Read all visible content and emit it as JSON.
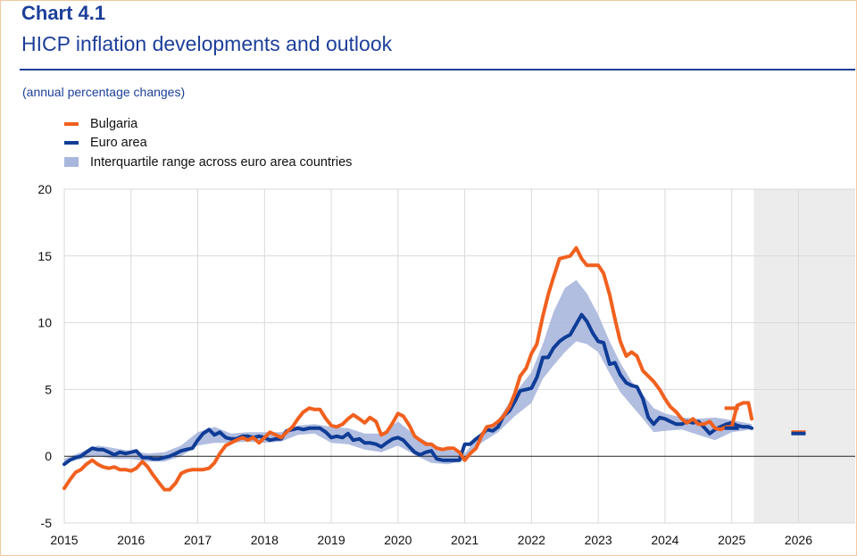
{
  "header": {
    "chart_number": "Chart 4.1",
    "title": "HICP inflation developments and outlook",
    "subtitle": "(annual percentage changes)"
  },
  "colors": {
    "bulgaria": "#f1601e",
    "euro_area": "#0f3c96",
    "interquartile_band": "#a9b7dd",
    "projection_shade": "#ececec",
    "title": "#1d3f9a"
  },
  "legend": [
    {
      "label": "Bulgaria",
      "kind": "line",
      "color": "#f1601e"
    },
    {
      "label": "Euro area",
      "kind": "line",
      "color": "#0f3c96"
    },
    {
      "label": "Interquartile range across euro area countries",
      "kind": "band",
      "color": "#a9b7dd"
    }
  ],
  "chart_data": {
    "type": "line",
    "x_axis": {
      "ticks": [
        "2015",
        "2016",
        "2017",
        "2018",
        "2019",
        "2020",
        "2021",
        "2022",
        "2023",
        "2024",
        "2025",
        "2026"
      ],
      "range": [
        2015.0,
        2026.85
      ]
    },
    "y_axis": {
      "ticks": [
        "20",
        "15",
        "10",
        "5",
        "0",
        "-5"
      ],
      "range": [
        -5,
        20
      ]
    },
    "grid": true,
    "legend_position": "top-left",
    "projection_shaded_from": 2025.33,
    "series": [
      {
        "name": "Bulgaria",
        "color": "#f1601e",
        "points": [
          [
            2015.0,
            -2.4
          ],
          [
            2015.08,
            -1.8
          ],
          [
            2015.17,
            -1.2
          ],
          [
            2015.25,
            -1.0
          ],
          [
            2015.33,
            -0.6
          ],
          [
            2015.42,
            -0.3
          ],
          [
            2015.5,
            -0.6
          ],
          [
            2015.58,
            -0.8
          ],
          [
            2015.67,
            -0.9
          ],
          [
            2015.75,
            -0.8
          ],
          [
            2015.83,
            -1.0
          ],
          [
            2015.92,
            -1.0
          ],
          [
            2016.0,
            -1.1
          ],
          [
            2016.08,
            -0.9
          ],
          [
            2016.17,
            -0.4
          ],
          [
            2016.25,
            -0.8
          ],
          [
            2016.33,
            -1.4
          ],
          [
            2016.42,
            -2.0
          ],
          [
            2016.5,
            -2.5
          ],
          [
            2016.58,
            -2.5
          ],
          [
            2016.67,
            -2.0
          ],
          [
            2016.75,
            -1.3
          ],
          [
            2016.83,
            -1.1
          ],
          [
            2016.92,
            -1.0
          ],
          [
            2017.0,
            -1.0
          ],
          [
            2017.08,
            -1.0
          ],
          [
            2017.17,
            -0.9
          ],
          [
            2017.25,
            -0.5
          ],
          [
            2017.33,
            0.2
          ],
          [
            2017.42,
            0.8
          ],
          [
            2017.5,
            1.0
          ],
          [
            2017.58,
            1.2
          ],
          [
            2017.67,
            1.4
          ],
          [
            2017.75,
            1.2
          ],
          [
            2017.83,
            1.4
          ],
          [
            2017.92,
            1.0
          ],
          [
            2018.0,
            1.4
          ],
          [
            2018.08,
            1.8
          ],
          [
            2018.17,
            1.6
          ],
          [
            2018.25,
            1.4
          ],
          [
            2018.33,
            1.8
          ],
          [
            2018.42,
            2.2
          ],
          [
            2018.5,
            2.8
          ],
          [
            2018.58,
            3.3
          ],
          [
            2018.67,
            3.6
          ],
          [
            2018.75,
            3.5
          ],
          [
            2018.83,
            3.5
          ],
          [
            2018.92,
            2.8
          ],
          [
            2019.0,
            2.3
          ],
          [
            2019.08,
            2.2
          ],
          [
            2019.17,
            2.4
          ],
          [
            2019.25,
            2.8
          ],
          [
            2019.33,
            3.1
          ],
          [
            2019.42,
            2.8
          ],
          [
            2019.5,
            2.5
          ],
          [
            2019.58,
            2.9
          ],
          [
            2019.67,
            2.6
          ],
          [
            2019.75,
            1.6
          ],
          [
            2019.83,
            1.8
          ],
          [
            2019.92,
            2.5
          ],
          [
            2020.0,
            3.2
          ],
          [
            2020.08,
            3.0
          ],
          [
            2020.17,
            2.3
          ],
          [
            2020.25,
            1.5
          ],
          [
            2020.33,
            1.2
          ],
          [
            2020.42,
            0.9
          ],
          [
            2020.5,
            0.9
          ],
          [
            2020.58,
            0.6
          ],
          [
            2020.67,
            0.5
          ],
          [
            2020.75,
            0.6
          ],
          [
            2020.83,
            0.6
          ],
          [
            2020.92,
            0.3
          ],
          [
            2021.0,
            -0.3
          ],
          [
            2021.08,
            0.2
          ],
          [
            2021.17,
            0.6
          ],
          [
            2021.25,
            1.5
          ],
          [
            2021.33,
            2.2
          ],
          [
            2021.42,
            2.3
          ],
          [
            2021.5,
            2.6
          ],
          [
            2021.58,
            3.0
          ],
          [
            2021.67,
            3.7
          ],
          [
            2021.75,
            4.7
          ],
          [
            2021.83,
            6.0
          ],
          [
            2021.92,
            6.6
          ],
          [
            2022.0,
            7.7
          ],
          [
            2022.08,
            8.4
          ],
          [
            2022.17,
            10.5
          ],
          [
            2022.25,
            12.1
          ],
          [
            2022.33,
            13.4
          ],
          [
            2022.42,
            14.8
          ],
          [
            2022.5,
            14.9
          ],
          [
            2022.58,
            15.0
          ],
          [
            2022.67,
            15.6
          ],
          [
            2022.75,
            14.8
          ],
          [
            2022.83,
            14.3
          ],
          [
            2022.92,
            14.3
          ],
          [
            2023.0,
            14.3
          ],
          [
            2023.08,
            13.7
          ],
          [
            2023.17,
            12.1
          ],
          [
            2023.25,
            10.3
          ],
          [
            2023.33,
            8.6
          ],
          [
            2023.42,
            7.5
          ],
          [
            2023.5,
            7.8
          ],
          [
            2023.58,
            7.5
          ],
          [
            2023.67,
            6.4
          ],
          [
            2023.75,
            6.0
          ],
          [
            2023.83,
            5.6
          ],
          [
            2023.92,
            5.0
          ],
          [
            2024.0,
            4.3
          ],
          [
            2024.08,
            3.7
          ],
          [
            2024.17,
            3.3
          ],
          [
            2024.25,
            2.8
          ],
          [
            2024.33,
            2.5
          ],
          [
            2024.42,
            2.8
          ],
          [
            2024.5,
            2.4
          ],
          [
            2024.58,
            2.4
          ],
          [
            2024.67,
            2.6
          ],
          [
            2024.75,
            2.1
          ],
          [
            2024.83,
            2.0
          ],
          [
            2024.92,
            2.2
          ],
          [
            2025.0,
            2.2
          ],
          [
            2025.08,
            3.8
          ],
          [
            2025.17,
            4.0
          ],
          [
            2025.25,
            4.0
          ],
          [
            2025.3,
            2.8
          ]
        ]
      },
      {
        "name": "Euro area",
        "color": "#0f3c96",
        "points": [
          [
            2015.0,
            -0.6
          ],
          [
            2015.08,
            -0.3
          ],
          [
            2015.17,
            -0.1
          ],
          [
            2015.25,
            0.0
          ],
          [
            2015.33,
            0.3
          ],
          [
            2015.42,
            0.6
          ],
          [
            2015.5,
            0.5
          ],
          [
            2015.58,
            0.5
          ],
          [
            2015.67,
            0.3
          ],
          [
            2015.75,
            0.1
          ],
          [
            2015.83,
            0.3
          ],
          [
            2015.92,
            0.2
          ],
          [
            2016.0,
            0.3
          ],
          [
            2016.08,
            0.4
          ],
          [
            2016.17,
            -0.1
          ],
          [
            2016.25,
            -0.1
          ],
          [
            2016.33,
            -0.2
          ],
          [
            2016.42,
            -0.2
          ],
          [
            2016.5,
            -0.1
          ],
          [
            2016.58,
            0.0
          ],
          [
            2016.67,
            0.2
          ],
          [
            2016.75,
            0.4
          ],
          [
            2016.83,
            0.5
          ],
          [
            2016.92,
            0.6
          ],
          [
            2017.0,
            1.2
          ],
          [
            2017.08,
            1.7
          ],
          [
            2017.17,
            2.0
          ],
          [
            2017.25,
            1.6
          ],
          [
            2017.33,
            1.8
          ],
          [
            2017.42,
            1.4
          ],
          [
            2017.5,
            1.3
          ],
          [
            2017.58,
            1.3
          ],
          [
            2017.67,
            1.5
          ],
          [
            2017.75,
            1.5
          ],
          [
            2017.83,
            1.4
          ],
          [
            2017.92,
            1.5
          ],
          [
            2018.0,
            1.4
          ],
          [
            2018.08,
            1.2
          ],
          [
            2018.17,
            1.3
          ],
          [
            2018.25,
            1.3
          ],
          [
            2018.33,
            1.9
          ],
          [
            2018.42,
            2.0
          ],
          [
            2018.5,
            2.1
          ],
          [
            2018.58,
            2.0
          ],
          [
            2018.67,
            2.1
          ],
          [
            2018.75,
            2.1
          ],
          [
            2018.83,
            2.1
          ],
          [
            2018.92,
            1.8
          ],
          [
            2019.0,
            1.4
          ],
          [
            2019.08,
            1.5
          ],
          [
            2019.17,
            1.4
          ],
          [
            2019.25,
            1.7
          ],
          [
            2019.33,
            1.2
          ],
          [
            2019.42,
            1.3
          ],
          [
            2019.5,
            1.0
          ],
          [
            2019.58,
            1.0
          ],
          [
            2019.67,
            0.9
          ],
          [
            2019.75,
            0.7
          ],
          [
            2019.83,
            1.0
          ],
          [
            2019.92,
            1.3
          ],
          [
            2020.0,
            1.4
          ],
          [
            2020.08,
            1.2
          ],
          [
            2020.17,
            0.7
          ],
          [
            2020.25,
            0.3
          ],
          [
            2020.33,
            0.1
          ],
          [
            2020.42,
            0.3
          ],
          [
            2020.5,
            0.4
          ],
          [
            2020.58,
            -0.2
          ],
          [
            2020.67,
            -0.3
          ],
          [
            2020.75,
            -0.3
          ],
          [
            2020.83,
            -0.3
          ],
          [
            2020.92,
            -0.3
          ],
          [
            2021.0,
            0.9
          ],
          [
            2021.08,
            0.9
          ],
          [
            2021.17,
            1.3
          ],
          [
            2021.25,
            1.6
          ],
          [
            2021.33,
            2.0
          ],
          [
            2021.42,
            1.9
          ],
          [
            2021.5,
            2.2
          ],
          [
            2021.58,
            3.0
          ],
          [
            2021.67,
            3.4
          ],
          [
            2021.75,
            4.1
          ],
          [
            2021.83,
            4.9
          ],
          [
            2021.92,
            5.0
          ],
          [
            2022.0,
            5.1
          ],
          [
            2022.08,
            5.9
          ],
          [
            2022.17,
            7.4
          ],
          [
            2022.25,
            7.4
          ],
          [
            2022.33,
            8.1
          ],
          [
            2022.42,
            8.6
          ],
          [
            2022.5,
            8.9
          ],
          [
            2022.58,
            9.1
          ],
          [
            2022.67,
            9.9
          ],
          [
            2022.75,
            10.6
          ],
          [
            2022.83,
            10.1
          ],
          [
            2022.92,
            9.2
          ],
          [
            2023.0,
            8.6
          ],
          [
            2023.08,
            8.5
          ],
          [
            2023.17,
            6.9
          ],
          [
            2023.25,
            7.0
          ],
          [
            2023.33,
            6.1
          ],
          [
            2023.42,
            5.5
          ],
          [
            2023.5,
            5.3
          ],
          [
            2023.58,
            5.2
          ],
          [
            2023.67,
            4.3
          ],
          [
            2023.75,
            2.9
          ],
          [
            2023.83,
            2.4
          ],
          [
            2023.92,
            2.9
          ],
          [
            2024.0,
            2.8
          ],
          [
            2024.08,
            2.6
          ],
          [
            2024.17,
            2.4
          ],
          [
            2024.25,
            2.4
          ],
          [
            2024.33,
            2.6
          ],
          [
            2024.42,
            2.5
          ],
          [
            2024.5,
            2.6
          ],
          [
            2024.58,
            2.2
          ],
          [
            2024.67,
            1.7
          ],
          [
            2024.75,
            2.0
          ],
          [
            2024.83,
            2.2
          ],
          [
            2024.92,
            2.4
          ],
          [
            2025.0,
            2.5
          ],
          [
            2025.08,
            2.3
          ],
          [
            2025.17,
            2.2
          ],
          [
            2025.25,
            2.2
          ],
          [
            2025.3,
            2.1
          ]
        ]
      }
    ],
    "interquartile_band": {
      "name": "Interquartile range across euro area countries",
      "x": [
        2015.0,
        2015.25,
        2015.5,
        2015.75,
        2016.0,
        2016.25,
        2016.5,
        2016.75,
        2017.0,
        2017.25,
        2017.5,
        2017.75,
        2018.0,
        2018.25,
        2018.5,
        2018.75,
        2019.0,
        2019.25,
        2019.5,
        2019.75,
        2020.0,
        2020.25,
        2020.5,
        2020.75,
        2021.0,
        2021.25,
        2021.5,
        2021.75,
        2022.0,
        2022.17,
        2022.33,
        2022.5,
        2022.67,
        2022.83,
        2023.0,
        2023.17,
        2023.33,
        2023.5,
        2023.67,
        2023.83,
        2024.0,
        2024.25,
        2024.5,
        2024.75,
        2025.0,
        2025.3
      ],
      "lower": [
        -0.5,
        -0.2,
        0.0,
        -0.2,
        -0.2,
        -0.4,
        -0.4,
        0.0,
        0.8,
        1.0,
        1.0,
        1.1,
        1.0,
        1.1,
        1.6,
        1.7,
        1.0,
        0.9,
        0.5,
        0.3,
        0.8,
        0.1,
        -0.5,
        -0.6,
        -0.3,
        1.0,
        1.8,
        3.0,
        4.0,
        5.8,
        6.8,
        7.8,
        8.6,
        8.4,
        7.8,
        6.2,
        4.8,
        3.8,
        2.8,
        1.8,
        1.9,
        2.0,
        1.6,
        1.2,
        1.8,
        2.0
      ],
      "upper": [
        -0.2,
        0.3,
        0.8,
        0.6,
        0.4,
        0.2,
        0.3,
        0.8,
        1.8,
        2.2,
        1.7,
        1.8,
        1.8,
        1.8,
        2.3,
        2.4,
        2.2,
        2.1,
        1.7,
        1.7,
        2.6,
        1.6,
        0.9,
        0.5,
        0.2,
        1.8,
        2.7,
        4.7,
        6.3,
        8.4,
        10.8,
        12.6,
        13.2,
        12.2,
        10.6,
        8.6,
        7.0,
        5.6,
        4.6,
        3.6,
        3.2,
        2.9,
        2.8,
        2.9,
        2.7,
        2.4
      ]
    },
    "projections": [
      {
        "series": "Bulgaria",
        "x": 2025.0,
        "y": 3.6
      },
      {
        "series": "Euro area",
        "x": 2025.0,
        "y": 2.1
      },
      {
        "series": "Bulgaria",
        "x": 2026.0,
        "y": 1.8
      },
      {
        "series": "Euro area",
        "x": 2026.0,
        "y": 1.7
      }
    ]
  }
}
